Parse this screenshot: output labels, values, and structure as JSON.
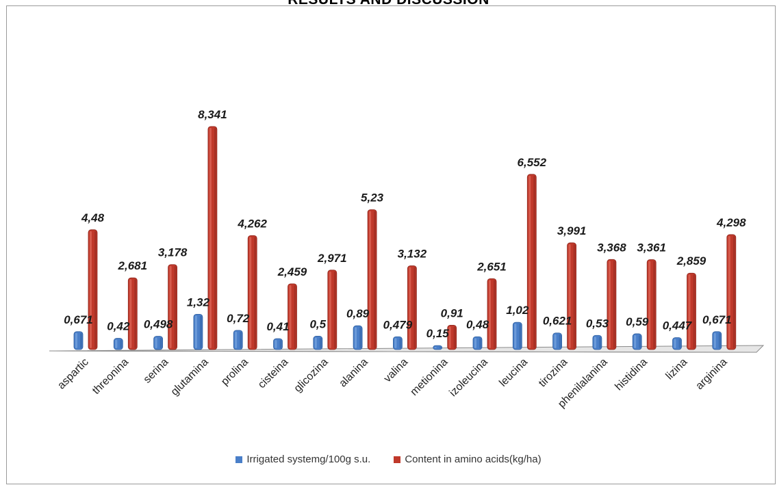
{
  "page": {
    "heading": "RESULTS AND DISCUSSION"
  },
  "chart_data": {
    "type": "bar",
    "title": "",
    "xlabel": "",
    "ylabel": "",
    "ylim": [
      0,
      9
    ],
    "grid": false,
    "legend_position": "bottom",
    "categories": [
      "aspartic",
      "threonina",
      "serina",
      "glutamina",
      "prolina",
      "cisteina",
      "glicozina",
      "alanina",
      "valina",
      "metionina",
      "izoleucina",
      "leucina",
      "tirozina",
      "phenilalanina",
      "histidina",
      "lizina",
      "arginina"
    ],
    "series": [
      {
        "name": "Irrigated systemg/100g s.u.",
        "color": "#4a7fc9",
        "values": [
          0.671,
          0.42,
          0.498,
          1.32,
          0.72,
          0.41,
          0.5,
          0.89,
          0.479,
          0.15,
          0.48,
          1.02,
          0.621,
          0.53,
          0.59,
          0.447,
          0.671
        ],
        "labels": [
          "0,671",
          "0,42",
          "0,498",
          "1,32",
          "0,72",
          "0,41",
          "0,5",
          "0,89",
          "0,479",
          "0,15",
          "0,48",
          "1,02",
          "0,621",
          "0,53",
          "0,59",
          "0,447",
          "0,671"
        ]
      },
      {
        "name": "Content in amino acids(kg/ha)",
        "color": "#c0392b",
        "values": [
          4.48,
          2.681,
          3.178,
          8.341,
          4.262,
          2.459,
          2.971,
          5.23,
          3.132,
          0.91,
          2.651,
          6.552,
          3.991,
          3.368,
          3.361,
          2.859,
          4.298
        ],
        "labels": [
          "4,48",
          "2,681",
          "3,178",
          "8,341",
          "4,262",
          "2,459",
          "2,971",
          "5,23",
          "3,132",
          "0,91",
          "2,651",
          "6,552",
          "3,991",
          "3,368",
          "3,361",
          "2,859",
          "4,298"
        ]
      }
    ]
  }
}
